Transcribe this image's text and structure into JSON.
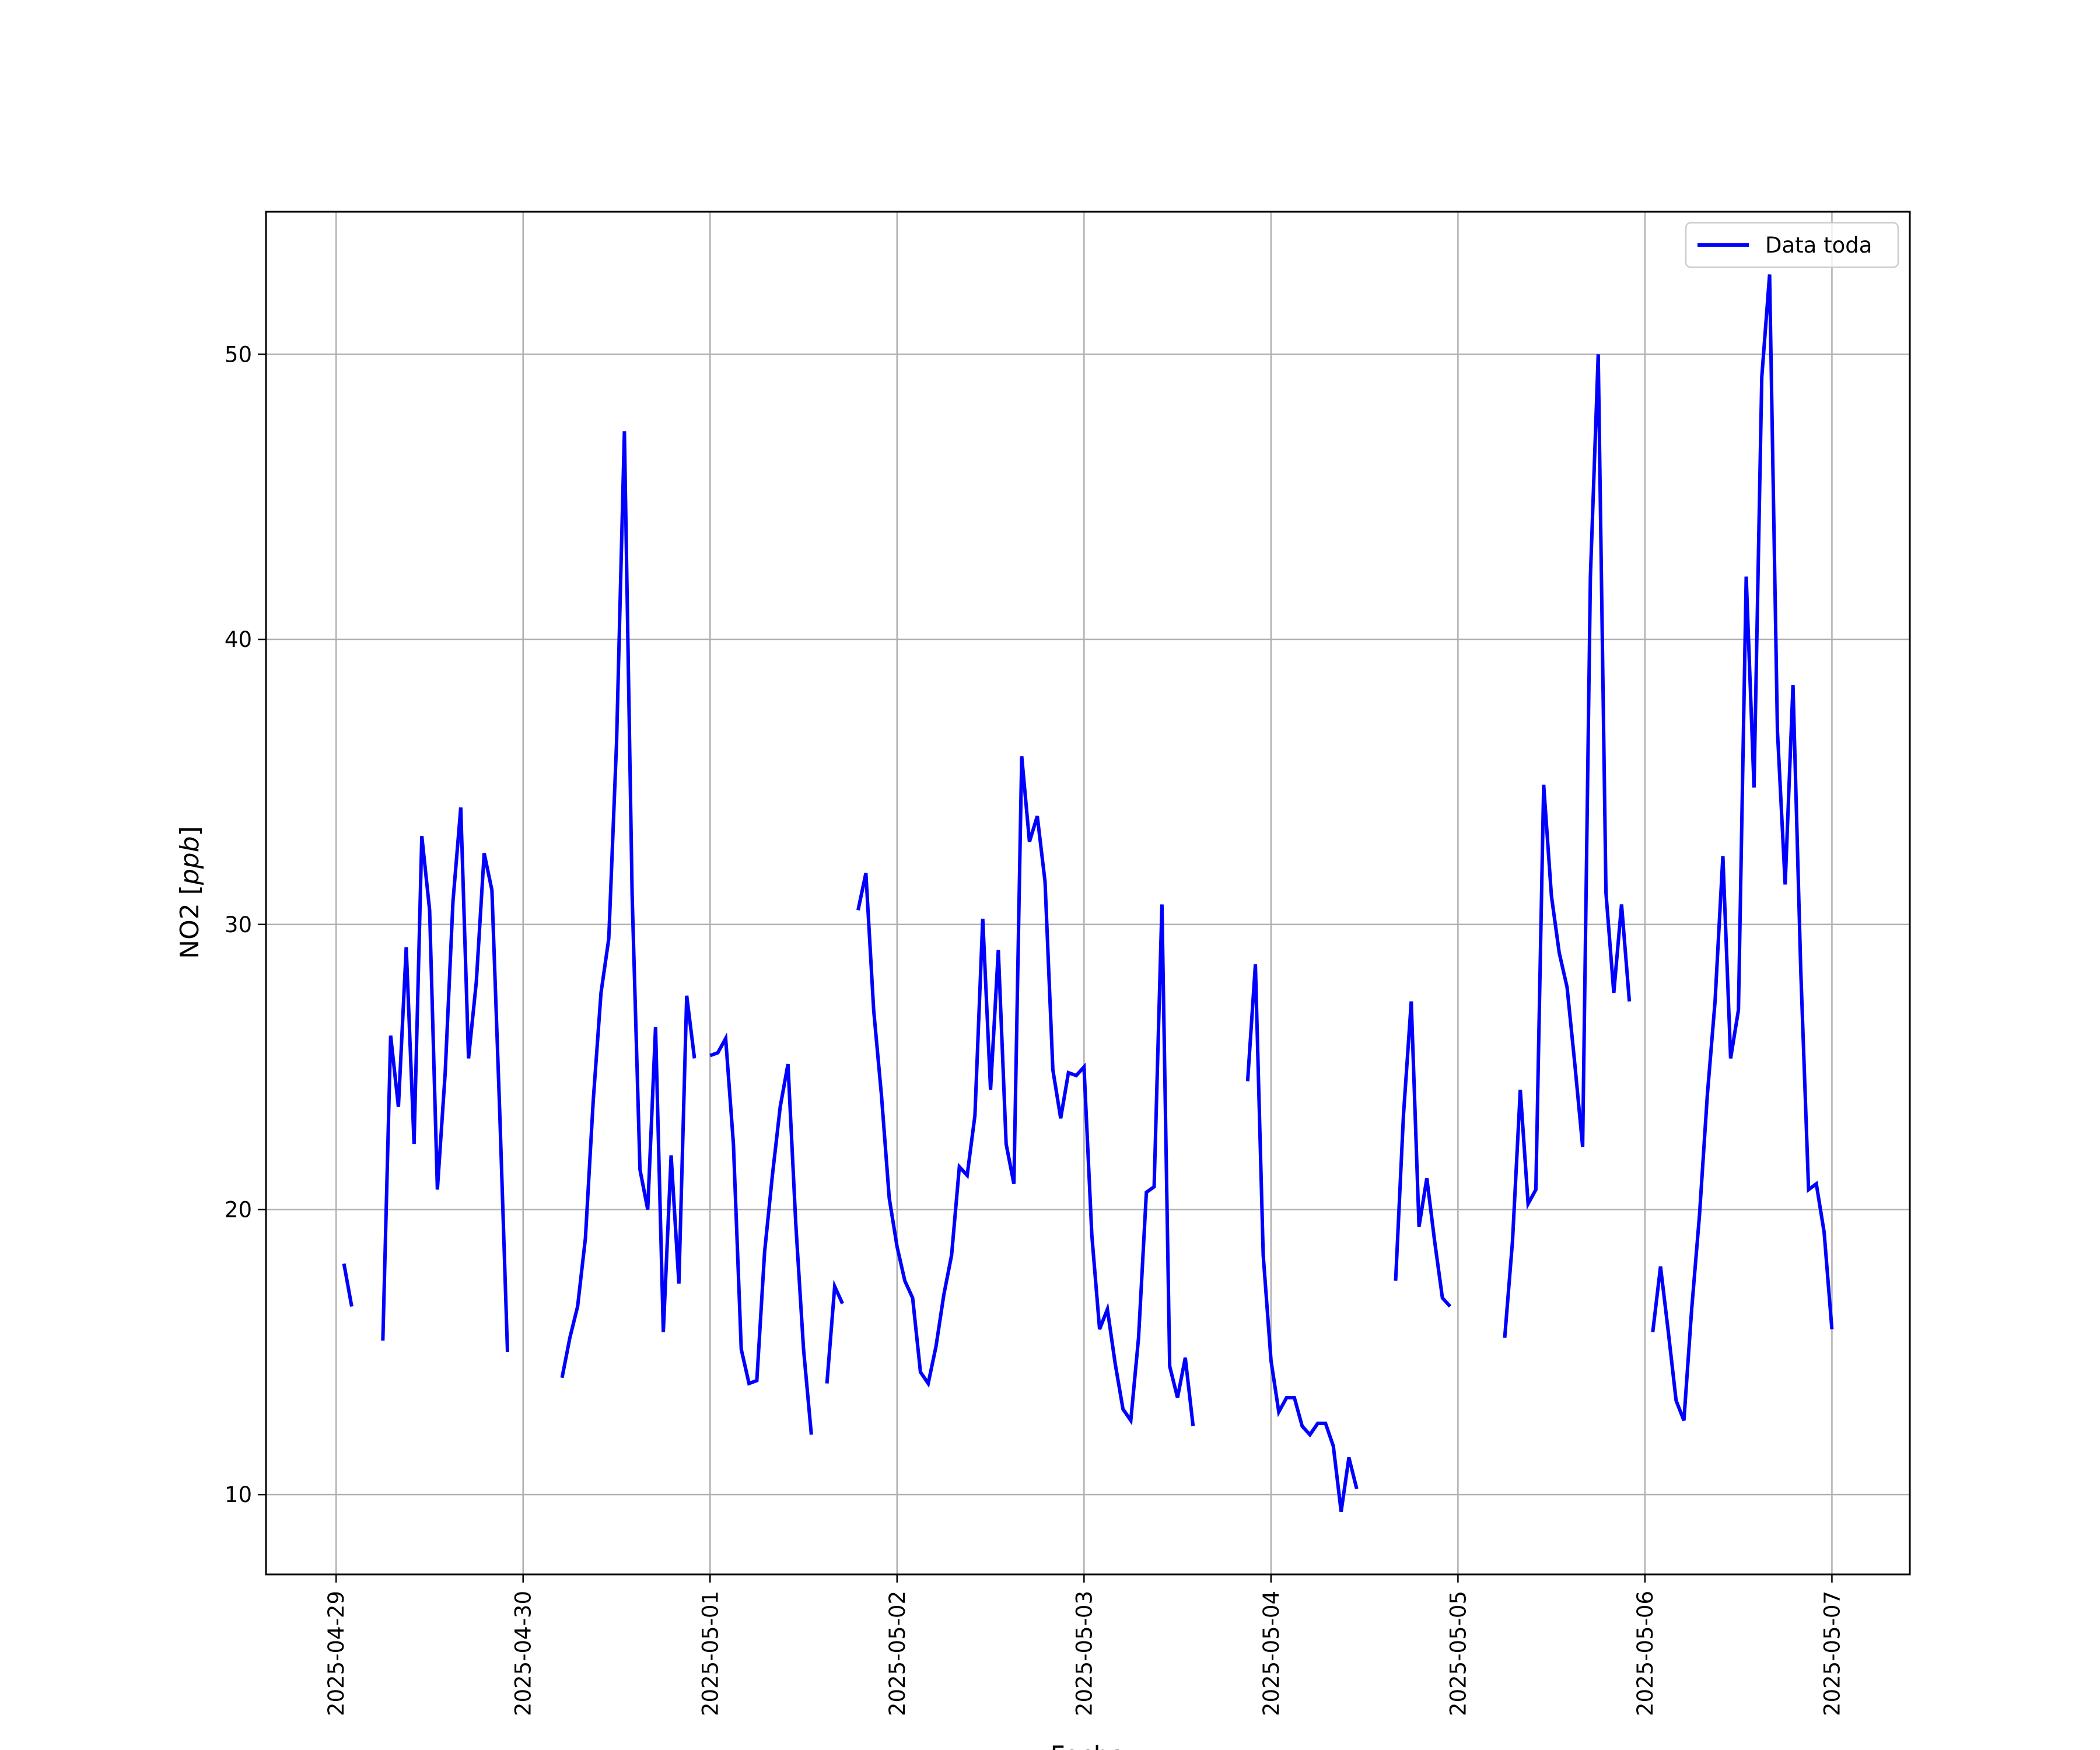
{
  "chart_data": {
    "type": "line",
    "title": "",
    "xlabel": "Fecha",
    "ylabel": "NO2 [ppb]",
    "ylabel_parts": {
      "name": "NO2 [",
      "unit": "ppb",
      "close": "]"
    },
    "xlim": [
      "2025-04-28 15:00",
      "2025-05-07 10:00"
    ],
    "ylim": [
      7.2,
      55.0
    ],
    "x_ticks": [
      "2025-04-29",
      "2025-04-30",
      "2025-05-01",
      "2025-05-02",
      "2025-05-03",
      "2025-05-04",
      "2025-05-05",
      "2025-05-06",
      "2025-05-07"
    ],
    "y_ticks": [
      10,
      20,
      30,
      40,
      50
    ],
    "y_tick_labels": [
      "10",
      "20",
      "30",
      "40",
      "50"
    ],
    "grid": true,
    "legend_position": "top-right",
    "colors": {
      "line": "#0000ff",
      "grid": "#b0b0b0",
      "axes": "#000000"
    },
    "series": [
      {
        "name": "Data toda",
        "segments": [
          [
            [
              "2025-04-29 01:00",
              18.1
            ],
            [
              "2025-04-29 02:00",
              16.6
            ]
          ],
          [
            [
              "2025-04-29 06:00",
              15.4
            ],
            [
              "2025-04-29 07:00",
              26.1
            ],
            [
              "2025-04-29 08:00",
              23.6
            ],
            [
              "2025-04-29 09:00",
              29.2
            ],
            [
              "2025-04-29 10:00",
              22.3
            ],
            [
              "2025-04-29 11:00",
              33.1
            ],
            [
              "2025-04-29 12:00",
              30.5
            ],
            [
              "2025-04-29 13:00",
              20.7
            ],
            [
              "2025-04-29 14:00",
              24.8
            ],
            [
              "2025-04-29 15:00",
              30.8
            ],
            [
              "2025-04-29 16:00",
              34.1
            ],
            [
              "2025-04-29 17:00",
              25.3
            ],
            [
              "2025-04-29 18:00",
              28.0
            ],
            [
              "2025-04-29 19:00",
              32.5
            ],
            [
              "2025-04-29 20:00",
              31.2
            ],
            [
              "2025-04-29 21:00",
              23.4
            ],
            [
              "2025-04-29 22:00",
              15.0
            ]
          ],
          [
            [
              "2025-04-30 05:00",
              14.1
            ],
            [
              "2025-04-30 06:00",
              15.5
            ],
            [
              "2025-04-30 07:00",
              16.6
            ],
            [
              "2025-04-30 08:00",
              19.0
            ],
            [
              "2025-04-30 09:00",
              23.8
            ],
            [
              "2025-04-30 10:00",
              27.6
            ],
            [
              "2025-04-30 11:00",
              29.5
            ],
            [
              "2025-04-30 12:00",
              36.4
            ],
            [
              "2025-04-30 13:00",
              47.3
            ],
            [
              "2025-04-30 14:00",
              31.0
            ],
            [
              "2025-04-30 15:00",
              21.4
            ],
            [
              "2025-04-30 16:00",
              20.0
            ],
            [
              "2025-04-30 17:00",
              26.4
            ],
            [
              "2025-04-30 18:00",
              15.7
            ],
            [
              "2025-04-30 19:00",
              21.9
            ],
            [
              "2025-04-30 20:00",
              17.4
            ],
            [
              "2025-04-30 21:00",
              27.5
            ],
            [
              "2025-04-30 22:00",
              25.3
            ]
          ],
          [
            [
              "2025-05-01 00:00",
              25.4
            ],
            [
              "2025-05-01 01:00",
              25.5
            ],
            [
              "2025-05-01 02:00",
              26.0
            ],
            [
              "2025-05-01 03:00",
              22.3
            ],
            [
              "2025-05-01 04:00",
              15.1
            ],
            [
              "2025-05-01 05:00",
              13.9
            ],
            [
              "2025-05-01 06:00",
              14.0
            ],
            [
              "2025-05-01 07:00",
              18.5
            ],
            [
              "2025-05-01 08:00",
              21.2
            ],
            [
              "2025-05-01 09:00",
              23.6
            ],
            [
              "2025-05-01 10:00",
              25.1
            ],
            [
              "2025-05-01 11:00",
              19.5
            ],
            [
              "2025-05-01 12:00",
              15.1
            ],
            [
              "2025-05-01 13:00",
              12.1
            ]
          ],
          [
            [
              "2025-05-01 15:00",
              13.9
            ],
            [
              "2025-05-01 16:00",
              17.3
            ],
            [
              "2025-05-01 17:00",
              16.7
            ]
          ],
          [
            [
              "2025-05-01 19:00",
              30.5
            ],
            [
              "2025-05-01 20:00",
              31.8
            ],
            [
              "2025-05-01 21:00",
              27.0
            ],
            [
              "2025-05-01 22:00",
              24.0
            ],
            [
              "2025-05-01 23:00",
              20.4
            ],
            [
              "2025-05-02 00:00",
              18.7
            ],
            [
              "2025-05-02 01:00",
              17.5
            ],
            [
              "2025-05-02 02:00",
              16.9
            ],
            [
              "2025-05-02 03:00",
              14.3
            ],
            [
              "2025-05-02 04:00",
              13.9
            ],
            [
              "2025-05-02 05:00",
              15.2
            ],
            [
              "2025-05-02 06:00",
              17.0
            ],
            [
              "2025-05-02 07:00",
              18.4
            ],
            [
              "2025-05-02 08:00",
              21.5
            ],
            [
              "2025-05-02 09:00",
              21.2
            ],
            [
              "2025-05-02 10:00",
              23.3
            ],
            [
              "2025-05-02 11:00",
              30.2
            ],
            [
              "2025-05-02 12:00",
              24.2
            ],
            [
              "2025-05-02 13:00",
              29.1
            ],
            [
              "2025-05-02 14:00",
              22.3
            ],
            [
              "2025-05-02 15:00",
              20.9
            ],
            [
              "2025-05-02 16:00",
              35.9
            ],
            [
              "2025-05-02 17:00",
              32.9
            ],
            [
              "2025-05-02 18:00",
              33.8
            ],
            [
              "2025-05-02 19:00",
              31.5
            ],
            [
              "2025-05-02 20:00",
              24.9
            ],
            [
              "2025-05-02 21:00",
              23.2
            ],
            [
              "2025-05-02 22:00",
              24.8
            ],
            [
              "2025-05-02 23:00",
              24.7
            ],
            [
              "2025-05-03 00:00",
              25.0
            ],
            [
              "2025-05-03 01:00",
              19.1
            ],
            [
              "2025-05-03 02:00",
              15.8
            ],
            [
              "2025-05-03 03:00",
              16.5
            ],
            [
              "2025-05-03 04:00",
              14.6
            ],
            [
              "2025-05-03 05:00",
              13.0
            ],
            [
              "2025-05-03 06:00",
              12.6
            ],
            [
              "2025-05-03 07:00",
              15.5
            ],
            [
              "2025-05-03 08:00",
              20.6
            ],
            [
              "2025-05-03 09:00",
              20.8
            ],
            [
              "2025-05-03 10:00",
              30.7
            ],
            [
              "2025-05-03 11:00",
              14.5
            ],
            [
              "2025-05-03 12:00",
              13.4
            ],
            [
              "2025-05-03 13:00",
              14.8
            ],
            [
              "2025-05-03 14:00",
              12.4
            ]
          ],
          [
            [
              "2025-05-03 21:00",
              24.5
            ],
            [
              "2025-05-03 22:00",
              28.6
            ],
            [
              "2025-05-03 23:00",
              18.4
            ],
            [
              "2025-05-04 00:00",
              14.7
            ],
            [
              "2025-05-04 01:00",
              12.9
            ],
            [
              "2025-05-04 02:00",
              13.4
            ],
            [
              "2025-05-04 03:00",
              13.4
            ],
            [
              "2025-05-04 04:00",
              12.4
            ],
            [
              "2025-05-04 05:00",
              12.1
            ],
            [
              "2025-05-04 06:00",
              12.5
            ],
            [
              "2025-05-04 07:00",
              12.5
            ],
            [
              "2025-05-04 08:00",
              11.7
            ],
            [
              "2025-05-04 09:00",
              9.4
            ],
            [
              "2025-05-04 10:00",
              11.3
            ],
            [
              "2025-05-04 11:00",
              10.2
            ]
          ],
          [
            [
              "2025-05-04 16:00",
              17.5
            ],
            [
              "2025-05-04 17:00",
              23.3
            ],
            [
              "2025-05-04 18:00",
              27.3
            ],
            [
              "2025-05-04 19:00",
              19.4
            ],
            [
              "2025-05-04 20:00",
              21.1
            ],
            [
              "2025-05-04 21:00",
              18.9
            ],
            [
              "2025-05-04 22:00",
              16.9
            ],
            [
              "2025-05-04 23:00",
              16.6
            ]
          ],
          [
            [
              "2025-05-05 06:00",
              15.5
            ],
            [
              "2025-05-05 07:00",
              18.9
            ],
            [
              "2025-05-05 08:00",
              24.2
            ],
            [
              "2025-05-05 09:00",
              20.2
            ],
            [
              "2025-05-05 10:00",
              20.7
            ],
            [
              "2025-05-05 11:00",
              34.9
            ],
            [
              "2025-05-05 12:00",
              31.0
            ],
            [
              "2025-05-05 13:00",
              29.0
            ],
            [
              "2025-05-05 14:00",
              27.8
            ],
            [
              "2025-05-05 15:00",
              25.1
            ],
            [
              "2025-05-05 16:00",
              22.2
            ],
            [
              "2025-05-05 17:00",
              42.2
            ],
            [
              "2025-05-05 18:00",
              50.0
            ],
            [
              "2025-05-05 19:00",
              31.1
            ],
            [
              "2025-05-05 20:00",
              27.6
            ],
            [
              "2025-05-05 21:00",
              30.7
            ],
            [
              "2025-05-05 22:00",
              27.3
            ]
          ],
          [
            [
              "2025-05-06 01:00",
              15.7
            ],
            [
              "2025-05-06 02:00",
              18.0
            ],
            [
              "2025-05-06 03:00",
              15.7
            ],
            [
              "2025-05-06 04:00",
              13.3
            ],
            [
              "2025-05-06 05:00",
              12.6
            ],
            [
              "2025-05-06 06:00",
              16.5
            ],
            [
              "2025-05-06 07:00",
              19.8
            ],
            [
              "2025-05-06 08:00",
              24.0
            ],
            [
              "2025-05-06 09:00",
              27.3
            ],
            [
              "2025-05-06 10:00",
              32.4
            ],
            [
              "2025-05-06 11:00",
              25.3
            ],
            [
              "2025-05-06 12:00",
              27.0
            ],
            [
              "2025-05-06 13:00",
              42.2
            ],
            [
              "2025-05-06 14:00",
              34.8
            ],
            [
              "2025-05-06 15:00",
              49.2
            ],
            [
              "2025-05-06 16:00",
              52.8
            ],
            [
              "2025-05-06 17:00",
              36.8
            ],
            [
              "2025-05-06 18:00",
              31.4
            ],
            [
              "2025-05-06 19:00",
              38.4
            ],
            [
              "2025-05-06 20:00",
              28.4
            ],
            [
              "2025-05-06 21:00",
              20.7
            ],
            [
              "2025-05-06 22:00",
              20.9
            ],
            [
              "2025-05-06 23:00",
              19.2
            ],
            [
              "2025-05-07 00:00",
              15.8
            ]
          ]
        ]
      }
    ]
  }
}
